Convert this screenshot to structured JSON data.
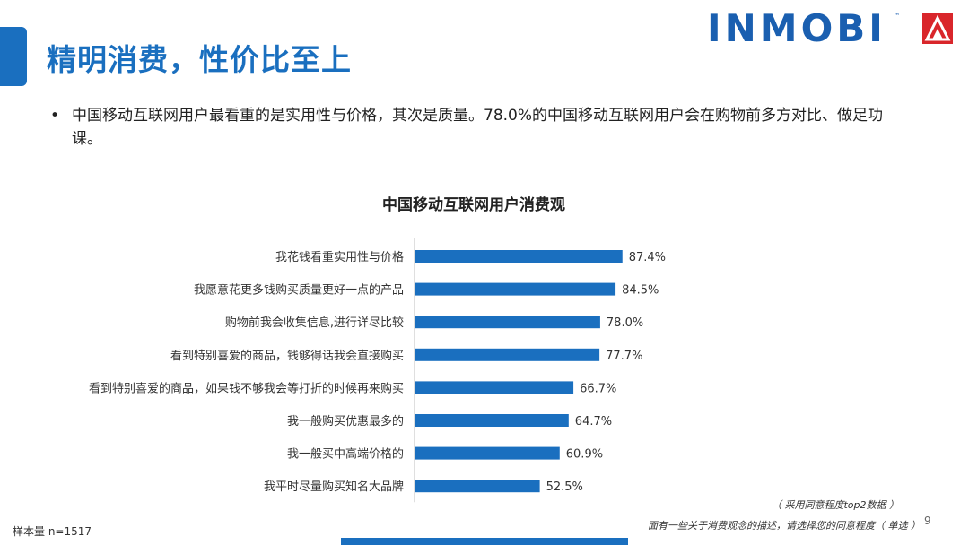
{
  "header": {
    "title": "精明消费，性价比至上",
    "logo_text": "INMOBI",
    "logo_tm": "™"
  },
  "bullet": {
    "symbol": "•",
    "text": "中国移动互联网用户最看重的是实用性与价格，其次是质量。78.0%的中国移动互联网用户会在购物前多方对比、做足功课。"
  },
  "chart_data": {
    "type": "bar",
    "orientation": "horizontal",
    "title": "中国移动互联网用户消费观",
    "categories": [
      "我花钱看重实用性与价格",
      "我愿意花更多钱购买质量更好一点的产品",
      "购物前我会收集信息,进行详尽比较",
      "看到特别喜爱的商品，钱够得话我会直接购买",
      "看到特别喜爱的商品，如果钱不够我会等打折的时候再来购买",
      "我一般购买优惠最多的",
      "我一般买中高端价格的",
      "我平时尽量购买知名大品牌"
    ],
    "values": [
      87.4,
      84.5,
      78.0,
      77.7,
      66.7,
      64.7,
      60.9,
      52.5
    ],
    "value_labels": [
      "87.4%",
      "84.5%",
      "78.0%",
      "77.7%",
      "66.7%",
      "64.7%",
      "60.9%",
      "52.5%"
    ],
    "xlim": [
      0,
      100
    ],
    "grid": false,
    "bar_color": "#1a6fbf"
  },
  "notes": {
    "method": "（ 采用同意程度top2数据 ）",
    "question": "面有一些关于消费观念的描述，请选择您的同意程度（ 单选 ）",
    "sample": "样本量 n=1517",
    "page_number": "9"
  }
}
